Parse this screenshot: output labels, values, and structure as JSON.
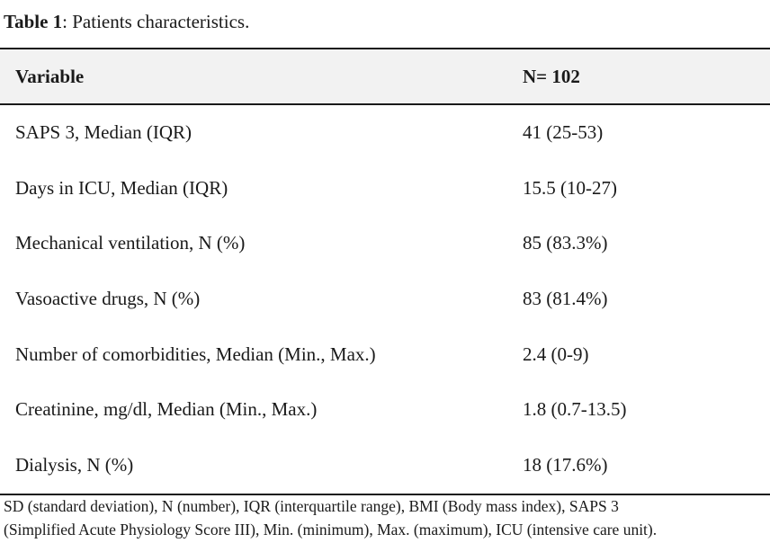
{
  "caption": {
    "label": "Table 1",
    "text": ": Patients characteristics."
  },
  "table": {
    "headers": [
      "Variable",
      "N= 102"
    ],
    "rows": [
      [
        "SAPS 3, Median (IQR)",
        "41 (25-53)"
      ],
      [
        "Days in ICU, Median (IQR)",
        "15.5 (10-27)"
      ],
      [
        "Mechanical ventilation, N (%)",
        "85 (83.3%)"
      ],
      [
        "Vasoactive drugs, N (%)",
        "83 (81.4%)"
      ],
      [
        "Number of comorbidities, Median (Min., Max.)",
        "2.4 (0-9)"
      ],
      [
        "Creatinine, mg/dl, Median (Min., Max.)",
        "1.8 (0.7-13.5)"
      ],
      [
        "Dialysis, N (%)",
        "18 (17.6%)"
      ]
    ]
  },
  "footnote": {
    "line1": "SD (standard deviation), N (number), IQR (interquartile range), BMI (Body mass index), SAPS 3",
    "line2": "(Simplified Acute Physiology Score III), Min. (minimum), Max. (maximum), ICU (intensive care unit)."
  }
}
